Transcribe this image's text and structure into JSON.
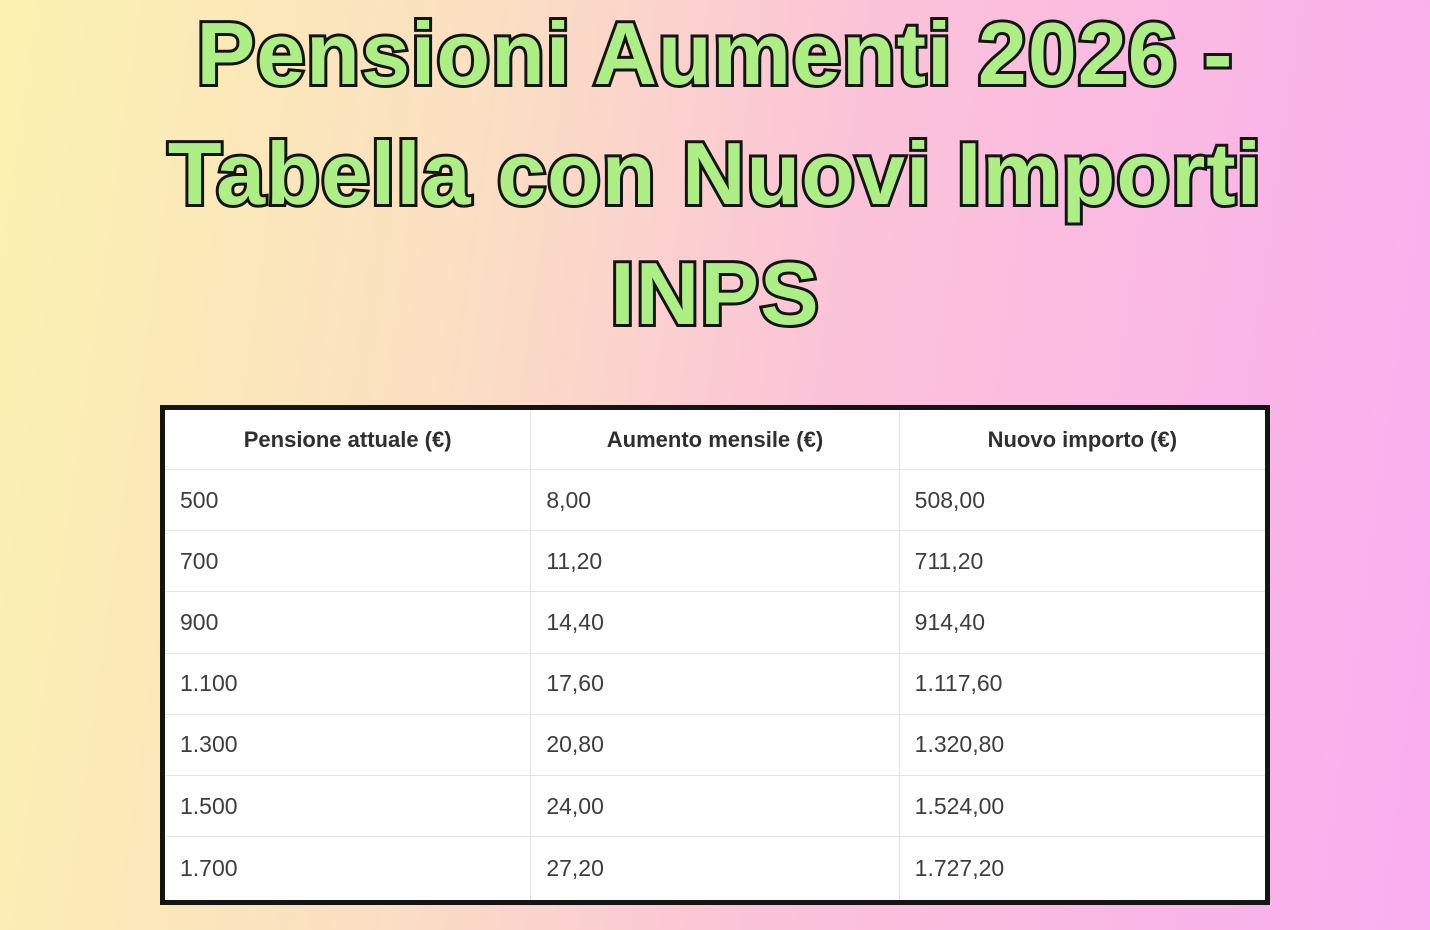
{
  "title": {
    "line1": "Pensioni Aumenti 2026 -",
    "line2": "Tabella con Nuovi Importi",
    "line3": "INPS"
  },
  "chart_data": {
    "type": "table",
    "title": "Pensioni Aumenti 2026 - Tabella con Nuovi Importi INPS",
    "columns": [
      "Pensione attuale (€)",
      "Aumento mensile (€)",
      "Nuovo importo (€)"
    ],
    "rows": [
      [
        "500",
        "8,00",
        "508,00"
      ],
      [
        "700",
        "11,20",
        "711,20"
      ],
      [
        "900",
        "14,40",
        "914,40"
      ],
      [
        "1.100",
        "17,60",
        "1.117,60"
      ],
      [
        "1.300",
        "20,80",
        "1.320,80"
      ],
      [
        "1.500",
        "24,00",
        "1.524,00"
      ],
      [
        "1.700",
        "27,20",
        "1.727,20"
      ]
    ],
    "numeric_series": [
      {
        "name": "Pensione attuale (€)",
        "values": [
          500,
          700,
          900,
          1100,
          1300,
          1500,
          1700
        ]
      },
      {
        "name": "Aumento mensile (€)",
        "values": [
          8.0,
          11.2,
          14.4,
          17.6,
          20.8,
          24.0,
          27.2
        ]
      },
      {
        "name": "Nuovo importo (€)",
        "values": [
          508.0,
          711.2,
          914.4,
          1117.6,
          1320.8,
          1524.0,
          1727.2
        ]
      }
    ]
  },
  "colors": {
    "background_yellow": "#fbf2b0",
    "background_peach": "#fbdfc2",
    "background_pink": "#faadf0",
    "title_fill_green": "#aeef85",
    "title_outline": "#141414",
    "table_border": "#141414",
    "table_background": "#ffffff",
    "table_divider": "#e4e4e4",
    "header_text": "#2f2f2f",
    "cell_text": "#3d3d3d"
  }
}
